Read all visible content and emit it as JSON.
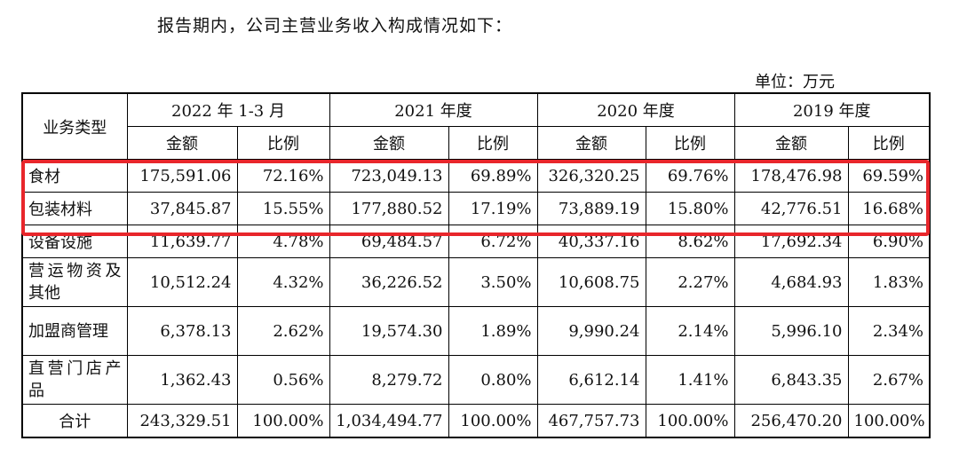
{
  "intro_text": "报告期内，公司主营业务收入构成情况如下：",
  "unit_label": "单位：万元",
  "table": {
    "corner_label": "业务类型",
    "periods": [
      "2022 年 1-3 月",
      "2021 年度",
      "2020 年度",
      "2019 年度"
    ],
    "amount_label": "金额",
    "ratio_label": "比例",
    "rows": [
      {
        "category": "食材",
        "cells": [
          "175,591.06",
          "72.16%",
          "723,049.13",
          "69.89%",
          "326,320.25",
          "69.76%",
          "178,476.98",
          "69.59%"
        ]
      },
      {
        "category": "包装材料",
        "cells": [
          "37,845.87",
          "15.55%",
          "177,880.52",
          "17.19%",
          "73,889.19",
          "15.80%",
          "42,776.51",
          "16.68%"
        ]
      },
      {
        "category": "设备设施",
        "cells": [
          "11,639.77",
          "4.78%",
          "69,484.57",
          "6.72%",
          "40,337.16",
          "8.62%",
          "17,692.34",
          "6.90%"
        ]
      },
      {
        "category": "营运物资及其他",
        "cells": [
          "10,512.24",
          "4.32%",
          "36,226.52",
          "3.50%",
          "10,608.75",
          "2.27%",
          "4,684.93",
          "1.83%"
        ]
      },
      {
        "category": "加盟商管理",
        "cells": [
          "6,378.13",
          "2.62%",
          "19,574.30",
          "1.89%",
          "9,990.24",
          "2.14%",
          "5,996.10",
          "2.34%"
        ]
      },
      {
        "category": "直营门店产品",
        "cells": [
          "1,362.43",
          "0.56%",
          "8,279.72",
          "0.80%",
          "6,612.14",
          "1.41%",
          "6,843.35",
          "2.67%"
        ]
      }
    ],
    "total": {
      "category": "合计",
      "cells": [
        "243,329.51",
        "100.00%",
        "1,034,494.77",
        "100.00%",
        "467,757.73",
        "100.00%",
        "256,470.20",
        "100.00%"
      ]
    }
  },
  "highlight_color": "#e8262b"
}
